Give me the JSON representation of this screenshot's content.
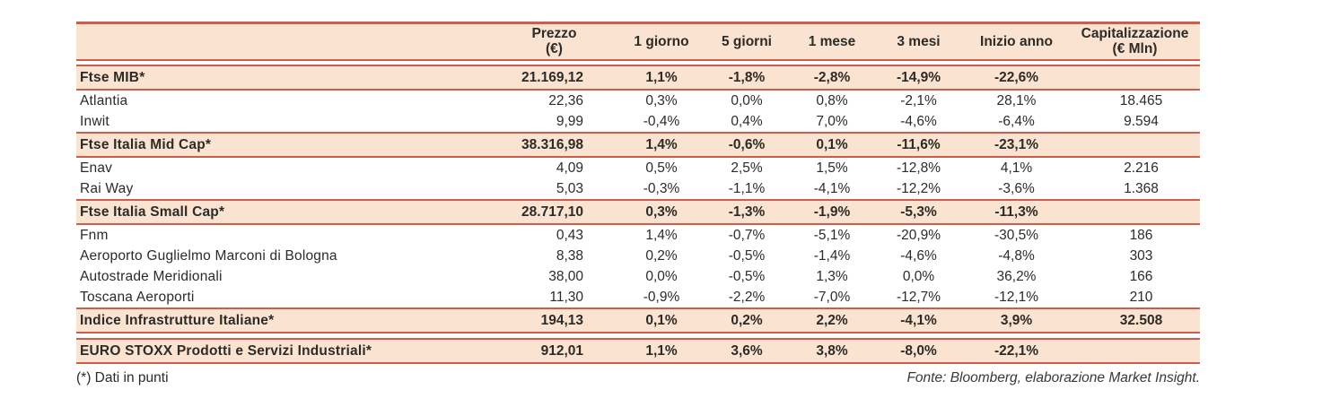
{
  "table": {
    "columns": [
      "Prezzo\n(€)",
      "1 giorno",
      "5 giorni",
      "1 mese",
      "3 mesi",
      "Inizio anno",
      "Capitalizzazione\n(€ Mln)"
    ],
    "rows": [
      {
        "kind": "index",
        "name": "Ftse MIB*",
        "values": [
          "21.169,12",
          "1,1%",
          "-1,8%",
          "-2,8%",
          "-14,9%",
          "-22,6%",
          ""
        ]
      },
      {
        "kind": "stock",
        "name": "Atlantia",
        "values": [
          "22,36",
          "0,3%",
          "0,0%",
          "0,8%",
          "-2,1%",
          "28,1%",
          "18.465"
        ]
      },
      {
        "kind": "stock",
        "name": "Inwit",
        "values": [
          "9,99",
          "-0,4%",
          "0,4%",
          "7,0%",
          "-4,6%",
          "-6,4%",
          "9.594"
        ]
      },
      {
        "kind": "index",
        "name": "Ftse Italia Mid Cap*",
        "values": [
          "38.316,98",
          "1,4%",
          "-0,6%",
          "0,1%",
          "-11,6%",
          "-23,1%",
          ""
        ]
      },
      {
        "kind": "stock",
        "name": "Enav",
        "values": [
          "4,09",
          "0,5%",
          "2,5%",
          "1,5%",
          "-12,8%",
          "4,1%",
          "2.216"
        ]
      },
      {
        "kind": "stock",
        "name": "Rai Way",
        "values": [
          "5,03",
          "-0,3%",
          "-1,1%",
          "-4,1%",
          "-12,2%",
          "-3,6%",
          "1.368"
        ]
      },
      {
        "kind": "index",
        "name": "Ftse Italia Small Cap*",
        "values": [
          "28.717,10",
          "0,3%",
          "-1,3%",
          "-1,9%",
          "-5,3%",
          "-11,3%",
          ""
        ]
      },
      {
        "kind": "stock",
        "name": "Fnm",
        "values": [
          "0,43",
          "1,4%",
          "-0,7%",
          "-5,1%",
          "-20,9%",
          "-30,5%",
          "186"
        ]
      },
      {
        "kind": "stock",
        "name": "Aeroporto Guglielmo Marconi di Bologna",
        "values": [
          "8,38",
          "0,2%",
          "-0,5%",
          "-1,4%",
          "-4,6%",
          "-4,8%",
          "303"
        ]
      },
      {
        "kind": "stock",
        "name": "Autostrade Meridionali",
        "values": [
          "38,00",
          "0,0%",
          "-0,5%",
          "1,3%",
          "0,0%",
          "36,2%",
          "166"
        ]
      },
      {
        "kind": "stock",
        "name": "Toscana Aeroporti",
        "values": [
          "11,30",
          "-0,9%",
          "-2,2%",
          "-7,0%",
          "-12,7%",
          "-12,1%",
          "210"
        ]
      },
      {
        "kind": "index",
        "name": "Indice Infrastrutture Italiane*",
        "values": [
          "194,13",
          "0,1%",
          "0,2%",
          "2,2%",
          "-4,1%",
          "3,9%",
          "32.508"
        ]
      },
      {
        "kind": "index",
        "gap_before": true,
        "name": "EURO STOXX Prodotti e Servizi Industriali*",
        "values": [
          "912,01",
          "1,1%",
          "3,6%",
          "3,8%",
          "-8,0%",
          "-22,1%",
          ""
        ]
      }
    ]
  },
  "footer": {
    "note": "(*) Dati in punti",
    "source": "Fonte: Bloomberg, elaborazione Market Insight."
  },
  "colors": {
    "band_fill": "#fbe3d2",
    "band_border": "#cf5b4a",
    "text": "#2d2b27"
  }
}
